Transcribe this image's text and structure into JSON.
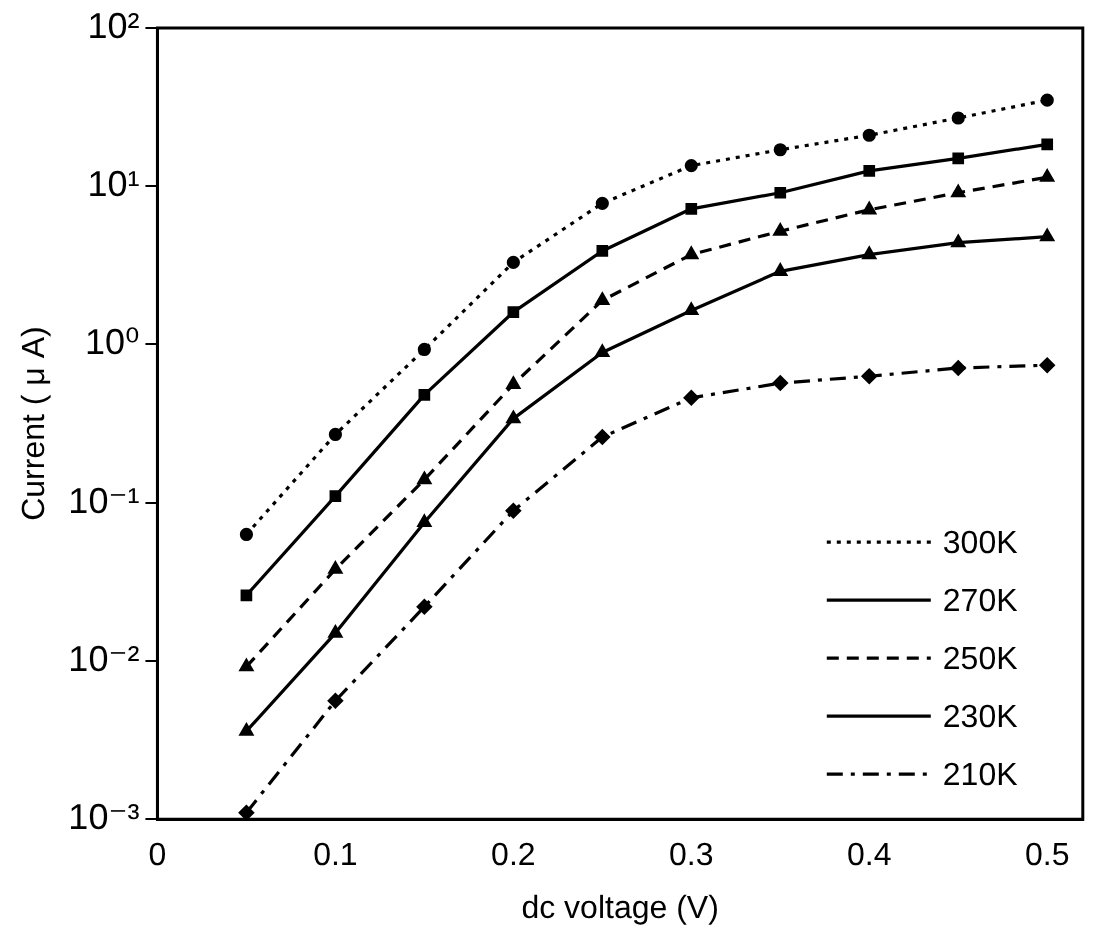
{
  "chart_data": {
    "type": "line",
    "xlabel": "dc voltage (V)",
    "ylabel": "Current ( μ A)",
    "log": "y",
    "x": [
      0.05,
      0.1,
      0.15,
      0.2,
      0.25,
      0.3,
      0.35,
      0.4,
      0.45,
      0.5
    ],
    "xlim": [
      0,
      0.52
    ],
    "xticks": [
      0,
      0.1,
      0.2,
      0.3,
      0.4,
      0.5
    ],
    "ylim": [
      0.001,
      100
    ],
    "yticks": [
      {
        "value": 0.001,
        "label": "10⁻³"
      },
      {
        "value": 0.01,
        "label": "10⁻²"
      },
      {
        "value": 0.1,
        "label": "10⁻¹"
      },
      {
        "value": 1,
        "label": "10⁰"
      },
      {
        "value": 10,
        "label": "10¹"
      },
      {
        "value": 100,
        "label": "10²"
      }
    ],
    "grid": false,
    "legend": "bottom right",
    "series": [
      {
        "name": "300K",
        "color": "#000000",
        "marker": "circle",
        "line_style": "dotted",
        "values": [
          0.063,
          0.27,
          0.93,
          3.3,
          7.8,
          13.5,
          17,
          21,
          27,
          35
        ]
      },
      {
        "name": "270K",
        "color": "#000000",
        "marker": "square",
        "line_style": "solid",
        "values": [
          0.026,
          0.11,
          0.48,
          1.6,
          3.9,
          7.2,
          9.1,
          12.5,
          15,
          18.4
        ]
      },
      {
        "name": "250K",
        "color": "#000000",
        "marker": "triangle",
        "line_style": "dashed",
        "values": [
          0.0092,
          0.038,
          0.14,
          0.56,
          1.9,
          3.7,
          5.2,
          7.1,
          9.1,
          11.4
        ]
      },
      {
        "name": "230K",
        "color": "#000000",
        "marker": "triangle",
        "line_style": "solid",
        "values": [
          0.0036,
          0.015,
          0.075,
          0.34,
          0.89,
          1.64,
          2.9,
          3.7,
          4.4,
          4.8
        ]
      },
      {
        "name": "210K",
        "color": "#000000",
        "marker": "diamond",
        "line_style": "dashdot",
        "values": [
          0.0011,
          0.0056,
          0.022,
          0.089,
          0.26,
          0.46,
          0.57,
          0.63,
          0.71,
          0.74
        ]
      }
    ]
  }
}
